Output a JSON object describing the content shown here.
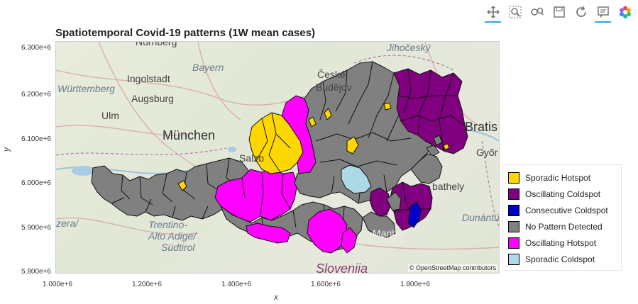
{
  "title": "Spatiotemporal Covid-19 patterns (1W mean cases)",
  "axes": {
    "xlabel": "x",
    "ylabel": "y",
    "yticks": [
      "6.300e+6",
      "6.200e+6",
      "6.100e+6",
      "6.000e+6",
      "5.900e+6",
      "5.800e+6"
    ],
    "xticks": [
      "1.000e+6",
      "1.200e+6",
      "1.400e+6",
      "1.600e+6",
      "1.800e+6"
    ]
  },
  "attribution": "© OpenStreetMap contributors",
  "basemap_labels": [
    {
      "text": "Nürnberg"
    },
    {
      "text": "Bayern"
    },
    {
      "text": "Ingolstadt"
    },
    {
      "text": "Augsburg"
    },
    {
      "text": "Württemberg"
    },
    {
      "text": "Ulm"
    },
    {
      "text": "München"
    },
    {
      "text": "Salzb"
    },
    {
      "text": "Jihočeský"
    },
    {
      "text": "České"
    },
    {
      "text": "Budějov"
    },
    {
      "text": "Bratis"
    },
    {
      "text": "Győr"
    },
    {
      "text": "bathely"
    },
    {
      "text": "Dunántú"
    },
    {
      "text": "Trentino-"
    },
    {
      "text": "Alto Adige/"
    },
    {
      "text": "Südtirol"
    },
    {
      "text": "zera/"
    },
    {
      "text": "Slovenija"
    },
    {
      "text": "Maribor"
    }
  ],
  "legend": [
    {
      "label": "Sporadic Hotspot",
      "color": "#ffd700"
    },
    {
      "label": "Oscillating Coldspot",
      "color": "#800080"
    },
    {
      "label": "Consecutive Coldspot",
      "color": "#0000cd"
    },
    {
      "label": "No Pattern Detected",
      "color": "#808080"
    },
    {
      "label": "Oscillating Hotspot",
      "color": "#ff00ff"
    },
    {
      "label": "Sporadic Coldspot",
      "color": "#add8e6"
    }
  ],
  "toolbar": [
    {
      "icon": "pan-icon"
    },
    {
      "icon": "box-zoom-icon"
    },
    {
      "icon": "wheel-zoom-icon"
    },
    {
      "icon": "save-icon"
    },
    {
      "icon": "reset-icon"
    },
    {
      "icon": "hover-icon"
    },
    {
      "icon": "bokeh-logo-icon"
    }
  ]
}
